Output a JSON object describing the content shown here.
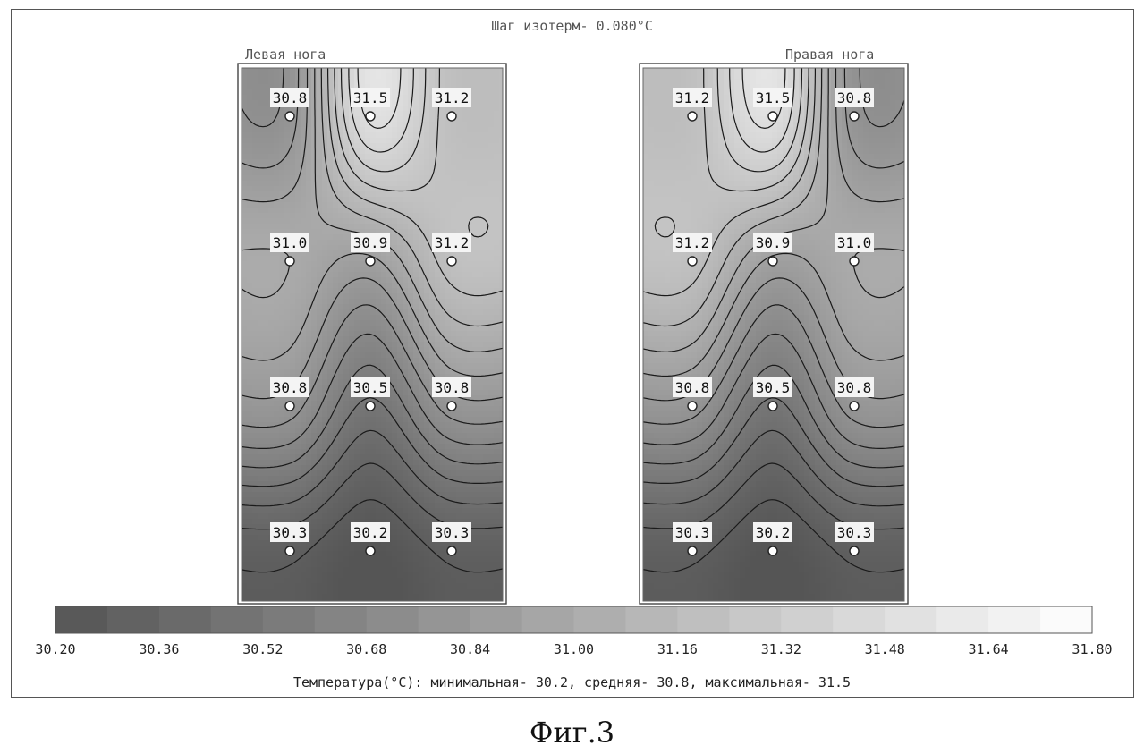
{
  "header": {
    "isotherm_step": "Шаг изотерм- 0.080°C"
  },
  "chart_data": {
    "type": "heatmap",
    "title": "Шаг изотерм- 0.080°C",
    "isotherm_step_c": 0.08,
    "panels": [
      {
        "name": "Левая нога",
        "rows": [
          [
            "30.8",
            "31.5",
            "31.2"
          ],
          [
            "31.0",
            "30.9",
            "31.2"
          ],
          [
            "30.8",
            "30.5",
            "30.8"
          ],
          [
            "30.3",
            "30.2",
            "30.3"
          ]
        ]
      },
      {
        "name": "Правая нога",
        "rows": [
          [
            "31.2",
            "31.5",
            "30.8"
          ],
          [
            "31.2",
            "30.9",
            "31.0"
          ],
          [
            "30.8",
            "30.5",
            "30.8"
          ],
          [
            "30.3",
            "30.2",
            "30.3"
          ]
        ]
      }
    ],
    "colorbar": {
      "min": 30.2,
      "max": 31.8,
      "ticks": [
        "30.20",
        "30.36",
        "30.52",
        "30.68",
        "30.84",
        "31.00",
        "31.16",
        "31.32",
        "31.48",
        "31.64",
        "31.80"
      ]
    },
    "stats_text": "Температура(°C): минимальная-  30.2, средняя-  30.8, максимальная-  31.5",
    "stats": {
      "min": 30.2,
      "mean": 30.8,
      "max": 31.5
    }
  },
  "caption": "Фиг.3"
}
